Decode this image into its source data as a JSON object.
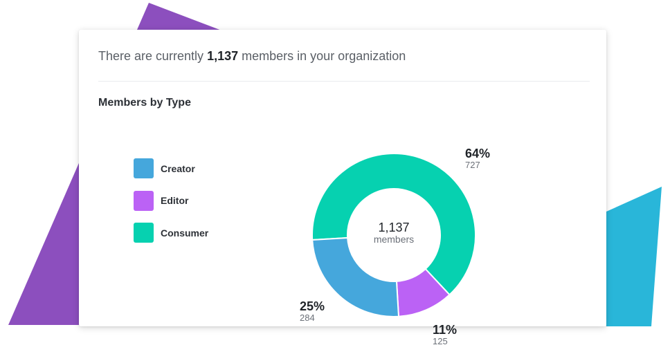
{
  "headline": {
    "prefix": "There are currently",
    "count": "1,137",
    "suffix": "members in your organization"
  },
  "section_title": "Members by Type",
  "colors": {
    "creator": "#45a7dc",
    "editor": "#bb62f5",
    "consumer": "#06d1b0",
    "bg_purple": "#8c4fbe",
    "bg_blue": "#29b6d9"
  },
  "legend": [
    {
      "label": "Creator",
      "color": "#45a7dc"
    },
    {
      "label": "Editor",
      "color": "#bb62f5"
    },
    {
      "label": "Consumer",
      "color": "#06d1b0"
    }
  ],
  "center": {
    "value": "1,137",
    "unit": "members"
  },
  "chart_data": {
    "type": "pie",
    "donut": true,
    "title": "Members by Type",
    "categories": [
      "Creator",
      "Editor",
      "Consumer"
    ],
    "values": [
      284,
      125,
      727
    ],
    "percent_labels": [
      "25%",
      "11%",
      "64%"
    ],
    "count_labels": [
      "284",
      "125",
      "727"
    ],
    "total": 1137,
    "legend_placement": "left"
  }
}
